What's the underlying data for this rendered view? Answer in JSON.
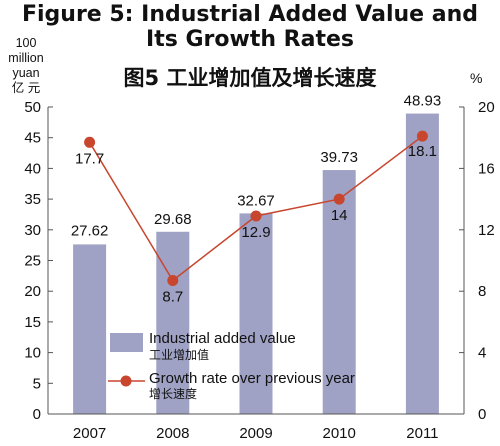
{
  "title": {
    "en_line1": "Figure 5: Industrial Added Value and",
    "en_line2": "Its Growth Rates",
    "zh": "图5  工业增加值及增长速度"
  },
  "axes": {
    "left_unit_lines": [
      "100",
      "million",
      "yuan",
      "亿 元"
    ],
    "right_unit": "%"
  },
  "colors": {
    "bar": "#9fa2c4",
    "line": "#c8452e",
    "axis": "#555555"
  },
  "chart_data": {
    "type": "bar",
    "categories": [
      "2007",
      "2008",
      "2009",
      "2010",
      "2011"
    ],
    "series": [
      {
        "name": "Industrial added value",
        "name_zh": "工业增加值",
        "type": "bar",
        "axis": "left",
        "values": [
          27.62,
          29.68,
          32.67,
          39.73,
          48.93
        ]
      },
      {
        "name": "Growth rate over previous year",
        "name_zh": "增长速度",
        "type": "line",
        "axis": "right",
        "values": [
          17.7,
          8.7,
          12.9,
          14,
          18.1
        ]
      }
    ],
    "ylim_left": [
      0,
      50
    ],
    "yticks_left": [
      0,
      5,
      10,
      15,
      20,
      25,
      30,
      35,
      40,
      45,
      50
    ],
    "ylim_right": [
      0,
      20
    ],
    "yticks_right": [
      0,
      4,
      8,
      12,
      16,
      20
    ],
    "bar_labels": [
      "27.62",
      "29.68",
      "32.67",
      "39.73",
      "48.93"
    ],
    "line_labels": [
      "17.7",
      "8.7",
      "12.9",
      "14",
      "18.1"
    ],
    "legend_position": "bottom-left",
    "grid": false
  }
}
